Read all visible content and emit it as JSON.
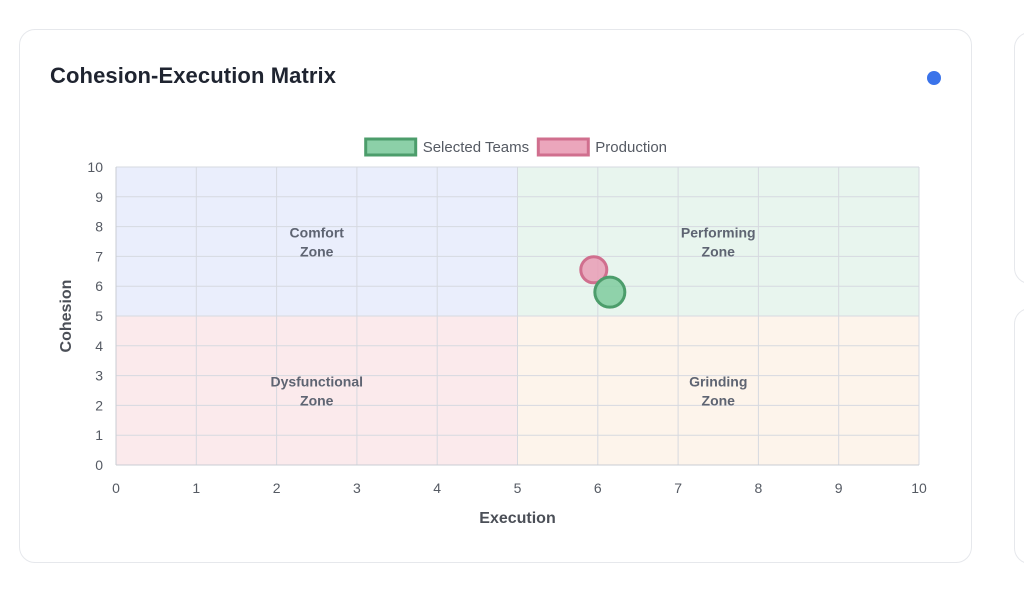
{
  "card": {
    "title": "Cohesion-Execution Matrix"
  },
  "chart_data": {
    "type": "scatter",
    "title": "",
    "xlabel": "Execution",
    "ylabel": "Cohesion",
    "xlim": [
      0,
      10
    ],
    "ylim": [
      0,
      10
    ],
    "xticks": [
      0,
      1,
      2,
      3,
      4,
      5,
      6,
      7,
      8,
      9,
      10
    ],
    "yticks": [
      0,
      1,
      2,
      3,
      4,
      5,
      6,
      7,
      8,
      9,
      10
    ],
    "grid": true,
    "legend_position": "top-center",
    "zones": [
      {
        "label_lines": [
          "Comfort",
          "Zone"
        ],
        "x": [
          0,
          5
        ],
        "y": [
          5,
          10
        ],
        "color": "#eaeefc"
      },
      {
        "label_lines": [
          "Performing",
          "Zone"
        ],
        "x": [
          5,
          10
        ],
        "y": [
          5,
          10
        ],
        "color": "#e8f5ee"
      },
      {
        "label_lines": [
          "Dysfunctional",
          "Zone"
        ],
        "x": [
          0,
          5
        ],
        "y": [
          0,
          5
        ],
        "color": "#fbeaec"
      },
      {
        "label_lines": [
          "Grinding",
          "Zone"
        ],
        "x": [
          5,
          10
        ],
        "y": [
          0,
          5
        ],
        "color": "#fdf4eb"
      }
    ],
    "series": [
      {
        "name": "Selected Teams",
        "points": [
          {
            "x": 6.15,
            "y": 5.8
          }
        ],
        "fill": "#7fcb9e",
        "stroke": "#4c9d6b"
      },
      {
        "name": "Production",
        "points": [
          {
            "x": 5.95,
            "y": 6.55
          }
        ],
        "fill": "#e99cb5",
        "stroke": "#d06f8e"
      }
    ]
  }
}
